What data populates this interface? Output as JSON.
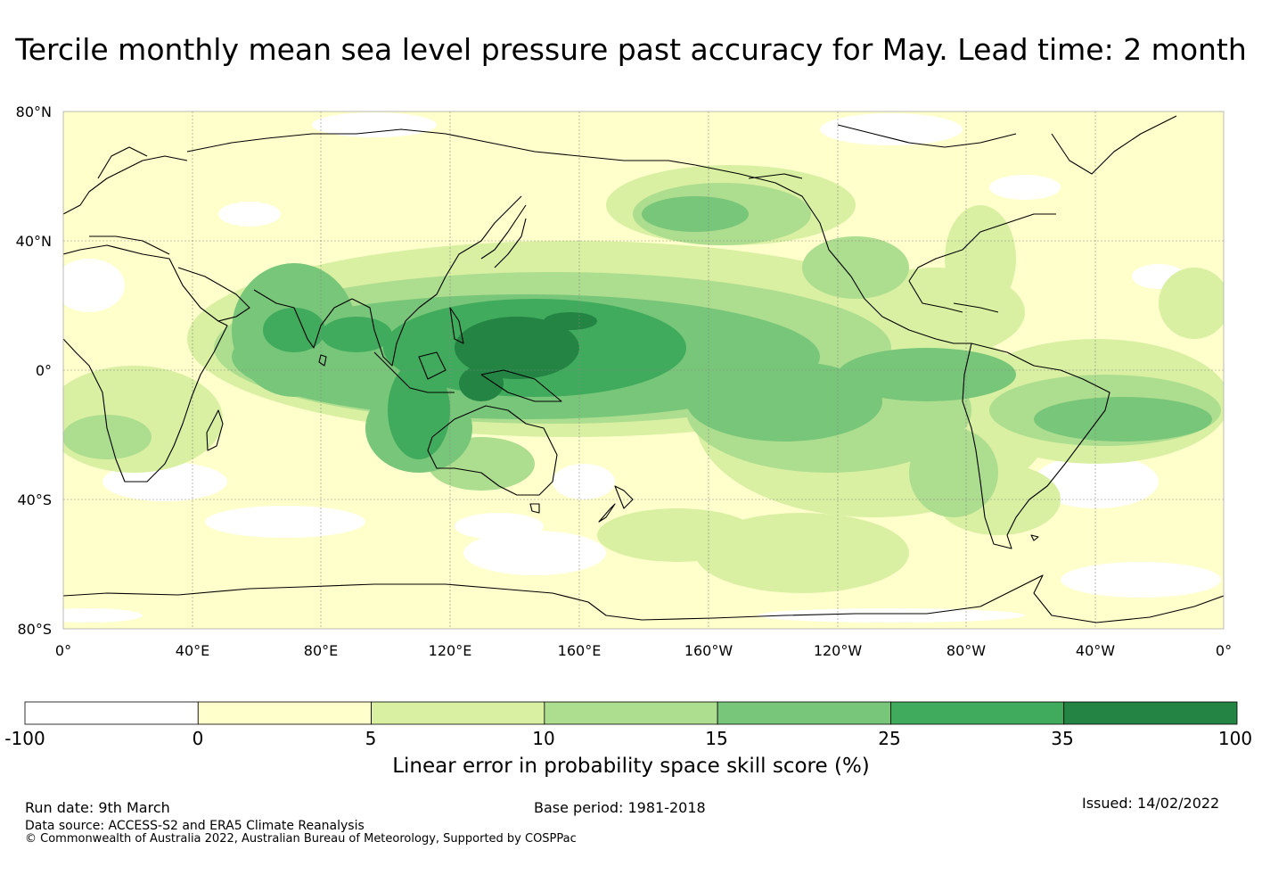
{
  "title": "Tercile monthly mean sea level pressure past accuracy for May. Lead time: 2 month",
  "map": {
    "projection": "equirectangular",
    "center_longitude": "180°",
    "lat_labels": [
      "80°N",
      "40°N",
      "0°",
      "40°S",
      "80°S"
    ],
    "lon_labels": [
      "0°",
      "40°E",
      "80°E",
      "120°E",
      "160°E",
      "160°W",
      "120°W",
      "80°W",
      "40°W",
      "0°"
    ],
    "grid": true,
    "background": "#ffffff",
    "coastline_color": "#000000"
  },
  "colorbar": {
    "label": "Linear error in probability space skill score (%)",
    "ticks": [
      "-100",
      "0",
      "5",
      "10",
      "15",
      "25",
      "35",
      "100"
    ],
    "colors": [
      "#ffffff",
      "#ffffcc",
      "#d9f0a3",
      "#addd8e",
      "#78c679",
      "#41ab5d",
      "#238443"
    ]
  },
  "footer": {
    "run_date": "Run date: 9th March",
    "base_period": "Base period: 1981-2018",
    "issued": "Issued: 14/02/2022",
    "data_source": "Data source: ACCESS-S2 and ERA5 Climate Reanalysis",
    "copyright": "© Commonwealth of Australia 2022, Australian Bureau of Meteorology, Supported by COSPPac"
  }
}
